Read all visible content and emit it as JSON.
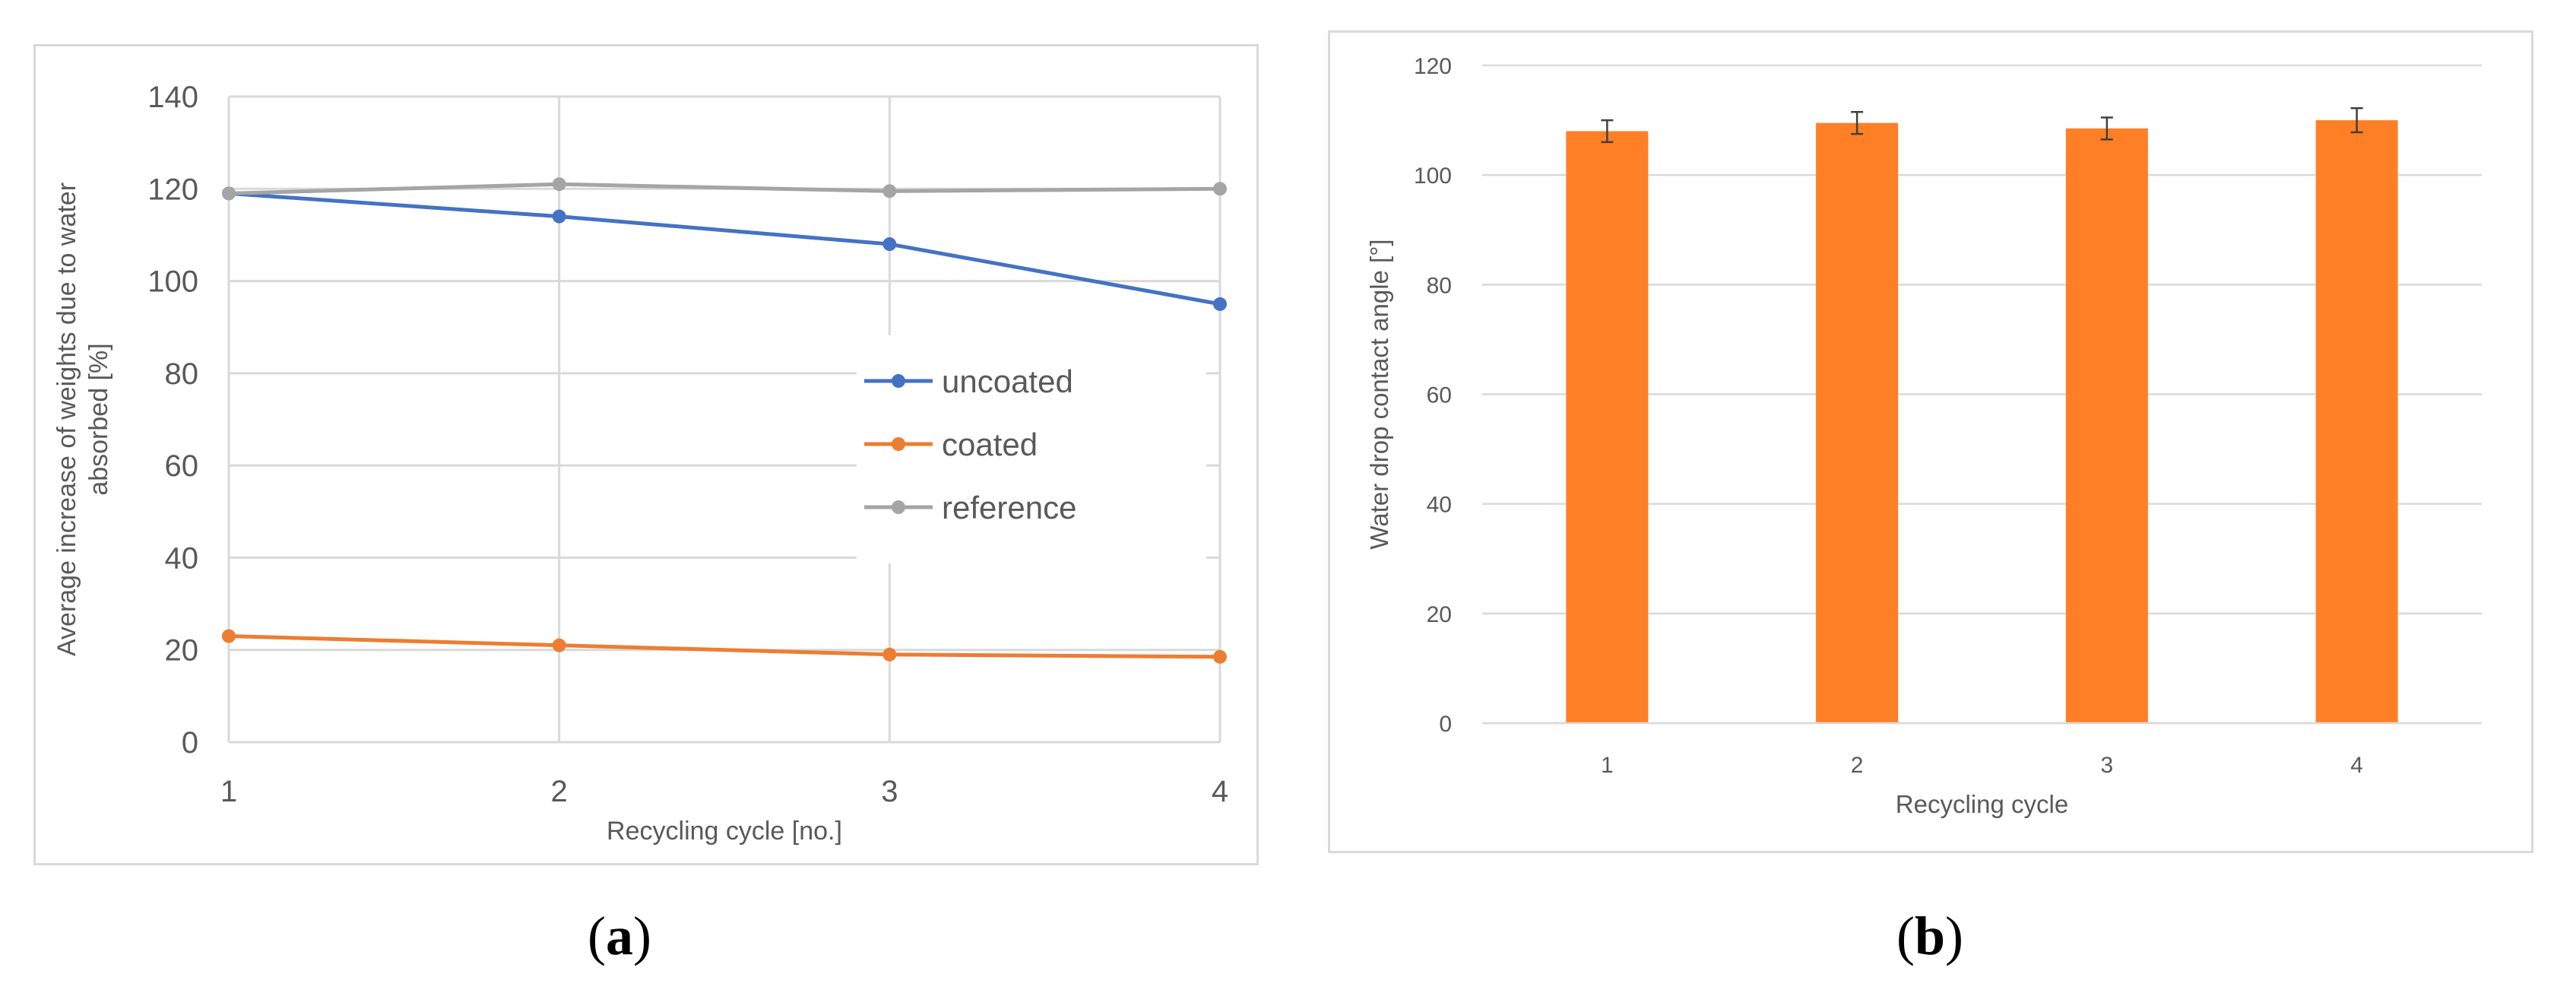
{
  "captions": {
    "a": {
      "open": "(",
      "letter": "a",
      "close": ")"
    },
    "b": {
      "open": "(",
      "letter": "b",
      "close": ")"
    }
  },
  "chart_data": [
    {
      "type": "line",
      "title": "",
      "xlabel": "Recycling cycle [no.]",
      "ylabel": "Average increase of weights due to water absorbed [%]",
      "ylabel_lines": [
        "Average increase of weights due to water",
        "absorbed [%]"
      ],
      "x": [
        1,
        2,
        3,
        4
      ],
      "x_tick_labels": [
        "1",
        "2",
        "3",
        "4"
      ],
      "ylim": [
        0,
        140
      ],
      "y_ticks": [
        0,
        20,
        40,
        60,
        80,
        100,
        120,
        140
      ],
      "grid": "both",
      "legend_position": "center-right",
      "series": [
        {
          "name": "uncoated",
          "color": "#4472c4",
          "values": [
            119,
            114,
            108,
            95
          ]
        },
        {
          "name": "coated",
          "color": "#ed7d31",
          "values": [
            23,
            21,
            19,
            18.5
          ]
        },
        {
          "name": "reference",
          "color": "#a5a5a5",
          "values": [
            119,
            121,
            119.5,
            120
          ]
        }
      ]
    },
    {
      "type": "bar",
      "title": "",
      "xlabel": "Recycling cycle",
      "ylabel": "Water drop contact angle [°]",
      "categories": [
        "1",
        "2",
        "3",
        "4"
      ],
      "values": [
        108,
        109.5,
        108.5,
        110
      ],
      "error": [
        2,
        2,
        2,
        2.2
      ],
      "ylim": [
        0,
        120
      ],
      "y_ticks": [
        0,
        20,
        40,
        60,
        80,
        100,
        120
      ],
      "grid": "horizontal",
      "color": "#ff7f27"
    }
  ]
}
